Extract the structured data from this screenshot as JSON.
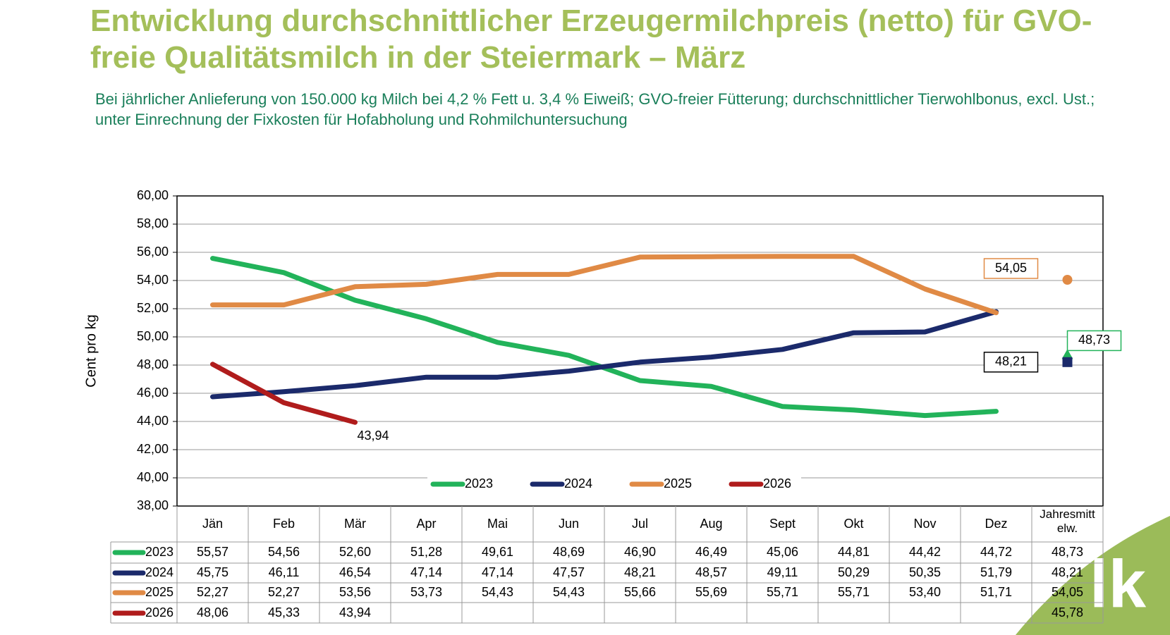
{
  "chart_data": {
    "type": "line",
    "title": "Entwicklung durchschnittlicher Erzeugermilchpreis (netto) für GVO-freie Qualitätsmilch in der Steiermark – März",
    "subtitle": "Bei jährlicher Anlieferung von 150.000 kg Milch bei 4,2 % Fett u. 3,4 % Eiweiß; GVO-freier Fütterung; durchschnittlicher Tierwohlbonus, excl. Ust.; unter Einrechnung der Fixkosten für Hofabholung und Rohmilchuntersuchung",
    "ylabel": "Cent pro kg",
    "categories": [
      "Jän",
      "Feb",
      "Mär",
      "Apr",
      "Mai",
      "Jun",
      "Jul",
      "Aug",
      "Sept",
      "Okt",
      "Nov",
      "Dez"
    ],
    "mean_category": "Jahresmitt elw.",
    "ylim": [
      38,
      60
    ],
    "yticks": [
      {
        "value": 38,
        "label": "38,00"
      },
      {
        "value": 40,
        "label": "40,00"
      },
      {
        "value": 42,
        "label": "42,00"
      },
      {
        "value": 44,
        "label": "44,00"
      },
      {
        "value": 46,
        "label": "46,00"
      },
      {
        "value": 48,
        "label": "48,00"
      },
      {
        "value": 50,
        "label": "50,00"
      },
      {
        "value": 52,
        "label": "52,00"
      },
      {
        "value": 54,
        "label": "54,00"
      },
      {
        "value": 56,
        "label": "56,00"
      },
      {
        "value": 58,
        "label": "58,00"
      },
      {
        "value": 60,
        "label": "60,00"
      }
    ],
    "grid": true,
    "series": [
      {
        "name": "2023",
        "color": "#22b35a",
        "values": [
          55.57,
          54.56,
          52.6,
          51.28,
          49.61,
          48.69,
          46.9,
          46.49,
          45.06,
          44.81,
          44.42,
          44.72
        ],
        "value_labels": [
          "55,57",
          "54,56",
          "52,60",
          "51,28",
          "49,61",
          "48,69",
          "46,90",
          "46,49",
          "45,06",
          "44,81",
          "44,42",
          "44,72"
        ],
        "annual_mean": 48.73,
        "annual_mean_label": "48,73",
        "marker": "triangle"
      },
      {
        "name": "2024",
        "color": "#1b2a6b",
        "values": [
          45.75,
          46.11,
          46.54,
          47.14,
          47.14,
          47.57,
          48.21,
          48.57,
          49.11,
          50.29,
          50.35,
          51.79
        ],
        "value_labels": [
          "45,75",
          "46,11",
          "46,54",
          "47,14",
          "47,14",
          "47,57",
          "48,21",
          "48,57",
          "49,11",
          "50,29",
          "50,35",
          "51,79"
        ],
        "annual_mean": 48.21,
        "annual_mean_label": "48,21",
        "marker": "square"
      },
      {
        "name": "2025",
        "color": "#e08a45",
        "values": [
          52.27,
          52.27,
          53.56,
          53.73,
          54.43,
          54.43,
          55.66,
          55.69,
          55.71,
          55.71,
          53.4,
          51.71
        ],
        "value_labels": [
          "52,27",
          "52,27",
          "53,56",
          "53,73",
          "54,43",
          "54,43",
          "55,66",
          "55,69",
          "55,71",
          "55,71",
          "53,40",
          "51,71"
        ],
        "annual_mean": 54.05,
        "annual_mean_label": "54,05",
        "marker": "circle"
      },
      {
        "name": "2026",
        "color": "#b01c1c",
        "values": [
          48.06,
          45.33,
          43.94,
          null,
          null,
          null,
          null,
          null,
          null,
          null,
          null,
          null
        ],
        "value_labels": [
          "48,06",
          "45,33",
          "43,94",
          null,
          null,
          null,
          null,
          null,
          null,
          null,
          null,
          null
        ],
        "annual_mean": 45.78,
        "annual_mean_label": "45,78",
        "end_label": true
      }
    ]
  },
  "logo": "lk"
}
